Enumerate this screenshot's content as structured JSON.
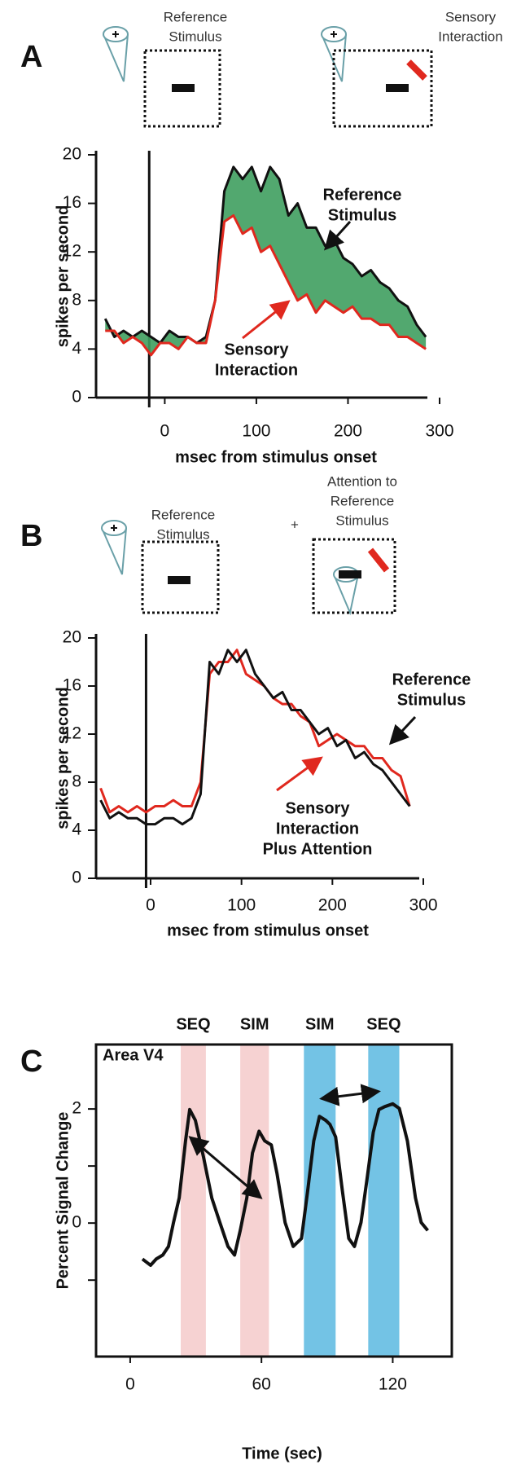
{
  "chart_data": [
    {
      "type": "line",
      "panel": "A",
      "icons": [
        [
          "Reference",
          "Stimulus"
        ],
        [
          "Sensory",
          "Interaction"
        ]
      ],
      "xlabel": "msec from stimulus onset",
      "ylabel": "spikes per second",
      "xlim": [
        -75,
        300
      ],
      "ylim": [
        0,
        20
      ],
      "xticks": [
        0,
        100,
        200,
        300
      ],
      "yticks": [
        0,
        4,
        8,
        12,
        16,
        20
      ],
      "vline": -17,
      "fill_between": "#3f9f5f",
      "x": [
        -65,
        -55,
        -45,
        -35,
        -25,
        -15,
        -5,
        5,
        15,
        25,
        35,
        45,
        55,
        65,
        75,
        85,
        95,
        105,
        115,
        125,
        135,
        145,
        155,
        165,
        175,
        185,
        195,
        205,
        215,
        225,
        235,
        245,
        255,
        265,
        275,
        285
      ],
      "series": [
        {
          "name": [
            "Reference",
            "Stimulus"
          ],
          "color": "#111111",
          "values": [
            6.5,
            5,
            5.5,
            5,
            5.5,
            5,
            4.5,
            5.5,
            5,
            5,
            4.5,
            5,
            8,
            17,
            19,
            18,
            19,
            17,
            19,
            18,
            15,
            16,
            14,
            14,
            12.5,
            13,
            11.5,
            11,
            10,
            10.5,
            9.5,
            9,
            8,
            7.5,
            6,
            5
          ]
        },
        {
          "name": [
            "Sensory",
            "Interaction"
          ],
          "color": "#e0281e",
          "values": [
            5.5,
            5.5,
            4.5,
            5,
            4.5,
            3.5,
            4.5,
            4.5,
            4,
            5,
            4.5,
            4.5,
            8,
            14.5,
            15,
            13.5,
            14,
            12,
            12.5,
            11,
            9.5,
            8,
            8.5,
            7,
            8,
            7.5,
            7,
            7.5,
            6.5,
            6.5,
            6,
            6,
            5,
            5,
            4.5,
            4
          ]
        }
      ]
    },
    {
      "type": "line",
      "panel": "B",
      "icons": [
        [
          "Reference",
          "Stimulus"
        ],
        [
          "Attention to",
          "Reference",
          "Stimulus"
        ]
      ],
      "icon_joiner": "+",
      "xlabel": "msec from stimulus onset",
      "ylabel": "spikes per second",
      "xlim": [
        -60,
        300
      ],
      "ylim": [
        0,
        20
      ],
      "xticks": [
        0,
        100,
        200,
        300
      ],
      "yticks": [
        0,
        4,
        8,
        12,
        16,
        20
      ],
      "vline": -5,
      "x": [
        -55,
        -45,
        -35,
        -25,
        -15,
        -5,
        5,
        15,
        25,
        35,
        45,
        55,
        65,
        75,
        85,
        95,
        105,
        115,
        125,
        135,
        145,
        155,
        165,
        175,
        185,
        195,
        205,
        215,
        225,
        235,
        245,
        255,
        265,
        275,
        285
      ],
      "series": [
        {
          "name": [
            "Sensory",
            "Interaction",
            "Plus Attention"
          ],
          "color": "#e0281e",
          "values": [
            7.5,
            5.5,
            6,
            5.5,
            6,
            5.5,
            6,
            6,
            6.5,
            6,
            6,
            8,
            17,
            18,
            18,
            19,
            17,
            16.5,
            16,
            15,
            14.5,
            14.5,
            13.5,
            13,
            11,
            11.5,
            12,
            11.5,
            11,
            11,
            10,
            10,
            9,
            8.5,
            6
          ]
        },
        {
          "name": [
            "Reference",
            "Stimulus"
          ],
          "color": "#111111",
          "values": [
            6.5,
            5,
            5.5,
            5,
            5,
            4.5,
            4.5,
            5,
            5,
            4.5,
            5,
            7,
            18,
            17,
            19,
            18,
            19,
            17,
            16,
            15,
            15.5,
            14,
            14,
            13,
            12,
            12.5,
            11,
            11.5,
            10,
            10.5,
            9.5,
            9,
            8,
            7,
            6
          ]
        }
      ]
    },
    {
      "type": "line",
      "panel": "C",
      "annotation": "Area V4",
      "xlabel": "Time (sec)",
      "ylabel": "Percent Signal Change",
      "xlim": [
        -15.6,
        147
      ],
      "ylim": [
        -2.34,
        3.13
      ],
      "xticks": [
        0,
        60,
        120
      ],
      "yticks": [
        0,
        2
      ],
      "minor_yticks": [
        -1,
        1
      ],
      "bands": [
        {
          "label": "SEQ",
          "start": 23.1,
          "end": 34.6,
          "color": "#f4caca"
        },
        {
          "label": "SIM",
          "start": 50.3,
          "end": 63.4,
          "color": "#f4caca"
        },
        {
          "label": "SIM",
          "start": 79.4,
          "end": 93.9,
          "color": "#5bb8e0"
        },
        {
          "label": "SEQ",
          "start": 108.8,
          "end": 123,
          "color": "#5bb8e0"
        }
      ],
      "x": [
        5.6,
        9.3,
        11.9,
        14.9,
        17.5,
        19.8,
        22.4,
        25.3,
        27.2,
        29.8,
        33.5,
        37.3,
        41,
        44.7,
        47.7,
        50.3,
        53.3,
        55.9,
        58.9,
        61.5,
        64.5,
        67.1,
        70.8,
        74.5,
        78.3,
        81.2,
        83.9,
        86.5,
        89.4,
        91.3,
        93.9,
        96.9,
        99.9,
        102.5,
        105.5,
        108.1,
        111.1,
        113.7,
        116.3,
        120,
        123,
        126.7,
        130.4,
        133,
        136
      ],
      "series": [
        {
          "color": "#111111",
          "values": [
            -0.63,
            -0.74,
            -0.63,
            -0.56,
            -0.41,
            0.01,
            0.44,
            1.44,
            1.99,
            1.8,
            1.16,
            0.44,
            0.01,
            -0.41,
            -0.56,
            -0.13,
            0.44,
            1.23,
            1.61,
            1.44,
            1.37,
            0.87,
            0.01,
            -0.41,
            -0.27,
            0.59,
            1.44,
            1.87,
            1.8,
            1.73,
            1.51,
            0.59,
            -0.27,
            -0.41,
            0.01,
            0.73,
            1.59,
            1.99,
            2.04,
            2.09,
            2.01,
            1.44,
            0.44,
            0.01,
            -0.13
          ]
        }
      ]
    }
  ]
}
